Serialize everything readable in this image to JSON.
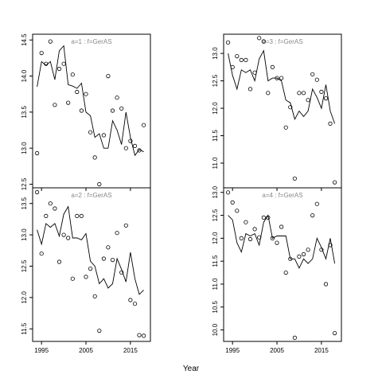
{
  "chart_data": {
    "type": "scatter",
    "xlabel": "Year",
    "panels": [
      {
        "title": "a=1  :  f=GerAS",
        "xlim": [
          1993,
          2019.5
        ],
        "ylim": [
          12.45,
          14.58
        ],
        "xticks": [
          1995,
          2005,
          2015
        ],
        "yticks": [
          12.5,
          13.0,
          13.5,
          14.0,
          14.5
        ],
        "ytick_labels": [
          "12.5",
          "13.0",
          "13.5",
          "14.0",
          "14.5"
        ],
        "show_xtick_labels": false,
        "line": {
          "x": [
            1994,
            1995,
            1996,
            1997,
            1998,
            1999,
            2000,
            2001,
            2002,
            2003,
            2004,
            2005,
            2006,
            2007,
            2008,
            2009,
            2010,
            2011,
            2012,
            2013,
            2014,
            2015,
            2016,
            2017,
            2018
          ],
          "y": [
            13.85,
            14.2,
            14.15,
            14.2,
            13.95,
            14.35,
            14.42,
            13.88,
            13.86,
            13.83,
            13.9,
            13.5,
            13.45,
            13.15,
            13.2,
            13.0,
            13.0,
            13.38,
            13.25,
            13.05,
            13.5,
            13.15,
            12.9,
            12.98,
            12.95
          ]
        },
        "points": {
          "x": [
            1994,
            1995,
            1996,
            1997,
            1998,
            1999,
            2000,
            2001,
            2002,
            2003,
            2004,
            2005,
            2006,
            2007,
            2008,
            2009,
            2010,
            2011,
            2012,
            2013,
            2014,
            2015,
            2016,
            2017,
            2018
          ],
          "y": [
            12.93,
            14.32,
            14.17,
            14.48,
            13.6,
            14.1,
            14.17,
            13.63,
            14.02,
            13.78,
            13.52,
            13.75,
            13.22,
            12.87,
            12.5,
            13.18,
            14.0,
            13.52,
            13.7,
            13.55,
            13.0,
            13.1,
            13.03,
            12.97,
            13.32
          ]
        }
      },
      {
        "title": "a=3  :  f=GerAS",
        "xlim": [
          1993,
          2019.5
        ],
        "ylim": [
          10.55,
          13.35
        ],
        "xticks": [
          1995,
          2005,
          2015
        ],
        "yticks": [
          11.0,
          11.5,
          12.0,
          12.5,
          13.0
        ],
        "ytick_labels": [
          "11.0",
          "11.5",
          "12.0",
          "12.5",
          "13.0"
        ],
        "show_xtick_labels": false,
        "line": {
          "x": [
            1994,
            1995,
            1996,
            1997,
            1998,
            1999,
            2000,
            2001,
            2002,
            2003,
            2004,
            2005,
            2006,
            2007,
            2008,
            2009,
            2010,
            2011,
            2012,
            2013,
            2014,
            2015,
            2016,
            2017,
            2018
          ],
          "y": [
            13.0,
            12.6,
            12.35,
            12.7,
            12.65,
            12.7,
            12.5,
            12.9,
            13.05,
            12.5,
            12.55,
            12.55,
            12.5,
            12.15,
            12.1,
            11.8,
            11.95,
            11.85,
            11.95,
            12.35,
            12.2,
            12.0,
            12.43,
            11.95,
            11.72
          ]
        },
        "points": {
          "x": [
            1994,
            1995,
            1996,
            1997,
            1998,
            1999,
            2000,
            2001,
            2002,
            2003,
            2004,
            2005,
            2006,
            2007,
            2008,
            2009,
            2010,
            2011,
            2012,
            2013,
            2014,
            2015,
            2016,
            2017,
            2018
          ],
          "y": [
            13.2,
            12.75,
            12.95,
            12.88,
            12.88,
            12.35,
            12.65,
            13.28,
            13.22,
            12.28,
            12.75,
            12.55,
            12.55,
            11.65,
            12.02,
            10.72,
            12.28,
            12.28,
            12.15,
            12.62,
            12.52,
            12.3,
            12.18,
            11.72,
            10.65
          ]
        }
      },
      {
        "title": "a=2  :  f=GerAS",
        "xlim": [
          1993,
          2019.5
        ],
        "ylim": [
          11.3,
          13.75
        ],
        "xticks": [
          1995,
          2005,
          2015
        ],
        "xtick_labels": [
          "1995",
          "2005",
          "2015"
        ],
        "yticks": [
          11.5,
          12.0,
          12.5,
          13.0,
          13.5
        ],
        "ytick_labels": [
          "11.5",
          "12.0",
          "12.5",
          "13.0",
          "13.5"
        ],
        "show_xtick_labels": true,
        "line": {
          "x": [
            1994,
            1995,
            1996,
            1997,
            1998,
            1999,
            2000,
            2001,
            2002,
            2003,
            2004,
            2005,
            2006,
            2007,
            2008,
            2009,
            2010,
            2011,
            2012,
            2013,
            2014,
            2015,
            2016,
            2017,
            2018
          ],
          "y": [
            13.08,
            12.85,
            13.18,
            13.12,
            13.18,
            12.98,
            13.33,
            13.45,
            12.95,
            12.95,
            12.92,
            13.02,
            12.58,
            12.5,
            12.22,
            12.3,
            12.15,
            12.22,
            12.62,
            12.45,
            12.25,
            12.72,
            12.3,
            12.05,
            12.12
          ]
        },
        "points": {
          "x": [
            1994,
            1995,
            1996,
            1997,
            1998,
            1999,
            2000,
            2001,
            2002,
            2003,
            2004,
            2005,
            2006,
            2007,
            2008,
            2009,
            2010,
            2011,
            2012,
            2013,
            2014,
            2015,
            2016,
            2017,
            2018
          ],
          "y": [
            13.68,
            12.7,
            13.3,
            13.5,
            13.42,
            12.57,
            13.0,
            12.95,
            12.3,
            13.3,
            13.3,
            12.33,
            12.46,
            12.02,
            11.47,
            12.62,
            12.8,
            12.6,
            13.03,
            12.4,
            13.15,
            11.96,
            11.9,
            11.4,
            11.39
          ]
        }
      },
      {
        "title": "a=4  :  f=GerAS",
        "xlim": [
          1993,
          2019.5
        ],
        "ylim": [
          9.75,
          13.1
        ],
        "xticks": [
          1995,
          2005,
          2015
        ],
        "xtick_labels": [
          "1995",
          "2005",
          "2015"
        ],
        "yticks": [
          10.0,
          10.5,
          11.0,
          11.5,
          12.0,
          12.5,
          13.0
        ],
        "ytick_labels": [
          "10.0",
          "10.5",
          "11.0",
          "11.5",
          "12.0",
          "12.5",
          "13.0"
        ],
        "show_xtick_labels": true,
        "line": {
          "x": [
            1994,
            1995,
            1996,
            1997,
            1998,
            1999,
            2000,
            2001,
            2002,
            2003,
            2004,
            2005,
            2006,
            2007,
            2008,
            2009,
            2010,
            2011,
            2012,
            2013,
            2014,
            2015,
            2016,
            2017,
            2018
          ],
          "y": [
            12.5,
            12.4,
            11.9,
            11.7,
            12.1,
            12.05,
            12.1,
            11.85,
            12.35,
            12.5,
            12.0,
            12.05,
            12.05,
            12.05,
            11.55,
            11.55,
            11.35,
            11.55,
            11.45,
            11.55,
            12.0,
            11.8,
            11.55,
            12.0,
            11.45
          ]
        },
        "points": {
          "x": [
            1994,
            1995,
            1996,
            1997,
            1998,
            1999,
            2000,
            2001,
            2002,
            2003,
            2004,
            2005,
            2006,
            2007,
            2008,
            2009,
            2010,
            2011,
            2012,
            2013,
            2014,
            2015,
            2016,
            2017,
            2018
          ],
          "y": [
            13.0,
            12.78,
            12.6,
            12.0,
            12.35,
            11.98,
            12.2,
            12.02,
            12.45,
            12.45,
            12.0,
            11.9,
            12.25,
            11.25,
            11.55,
            9.83,
            11.6,
            11.65,
            11.75,
            12.5,
            12.75,
            11.75,
            11.0,
            11.85,
            9.93
          ]
        }
      }
    ]
  }
}
